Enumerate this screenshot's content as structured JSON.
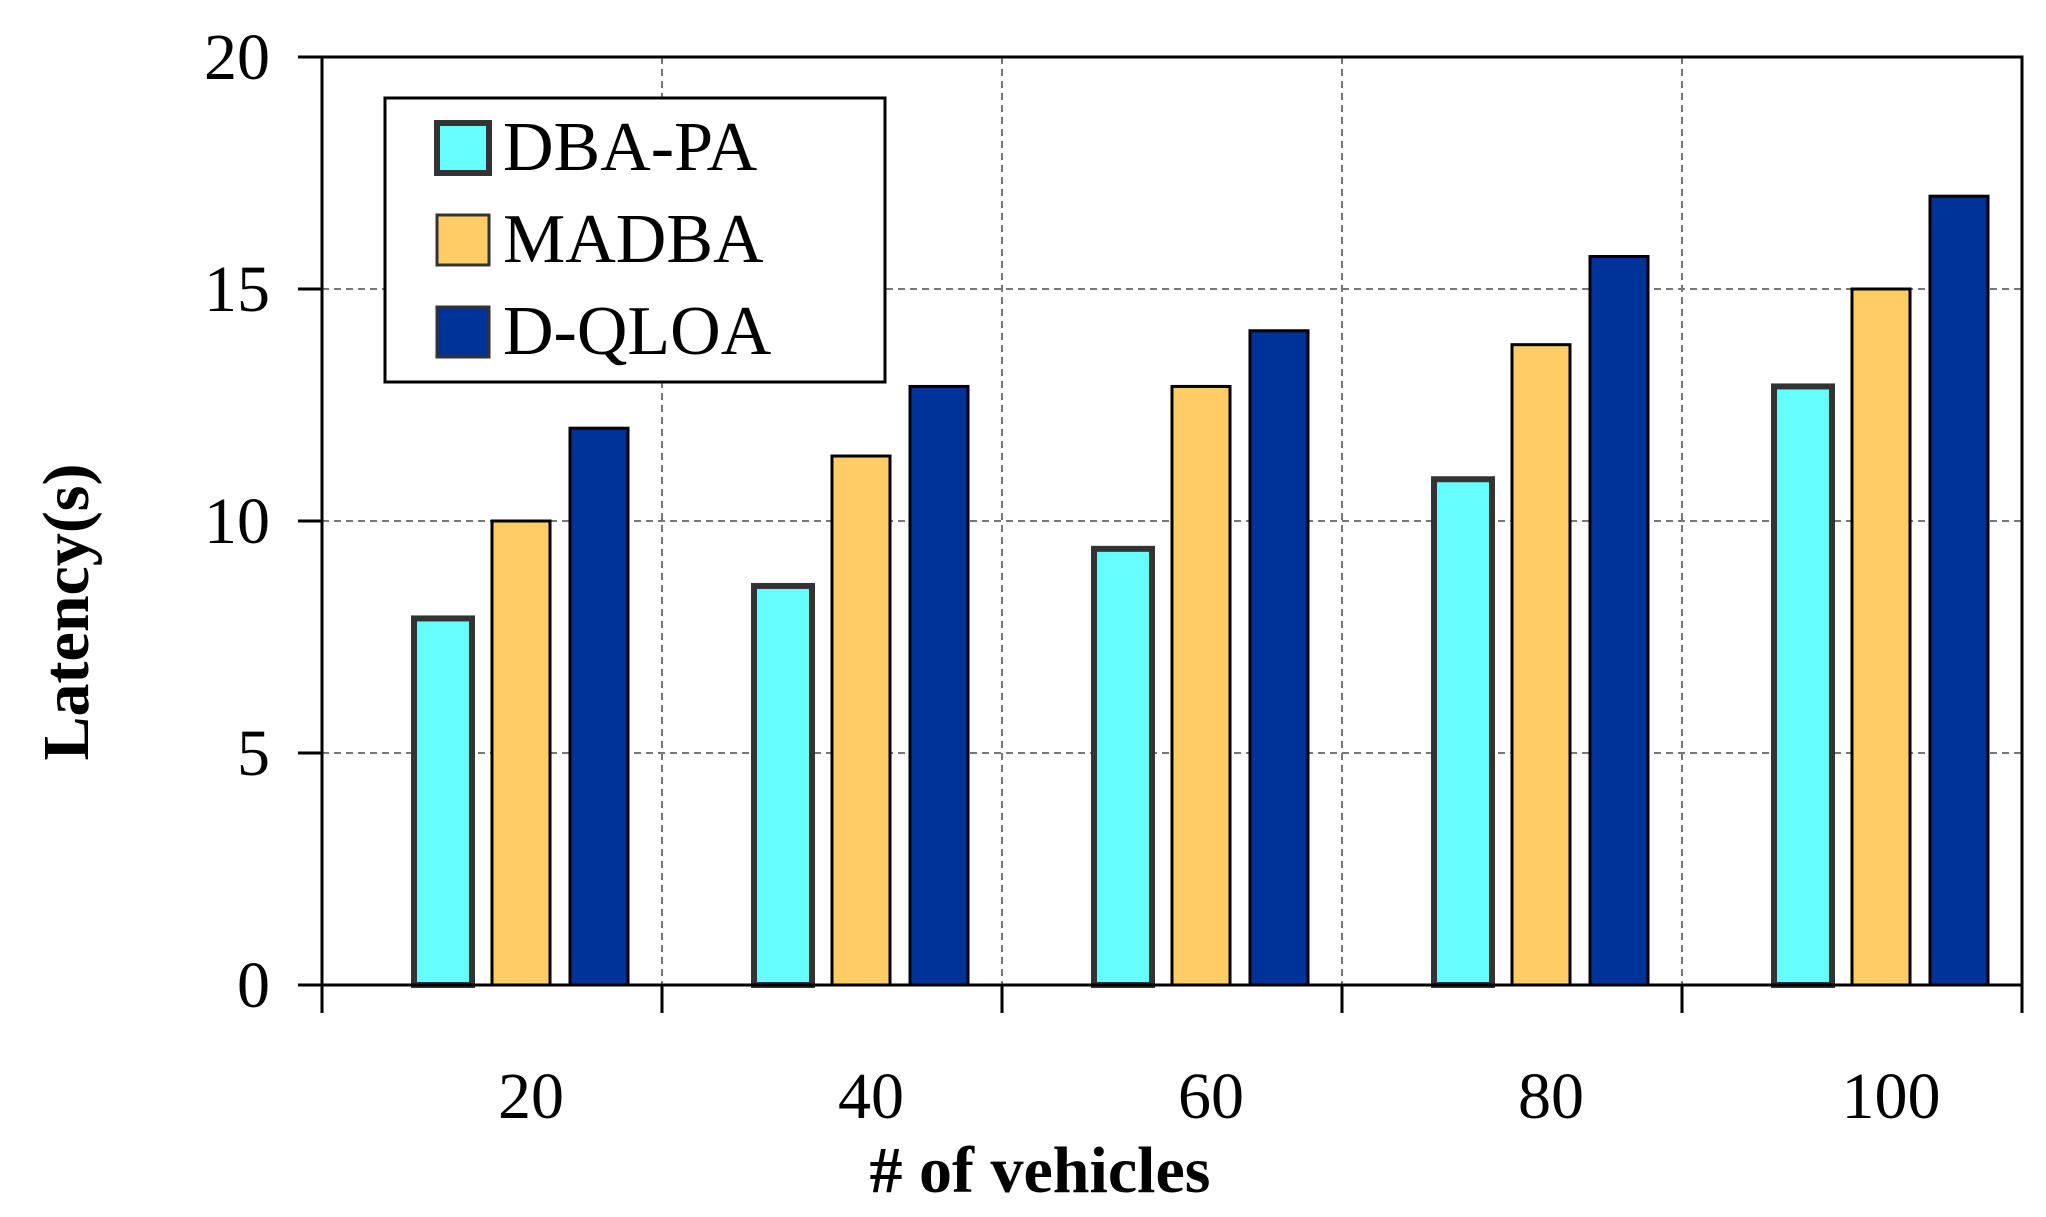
{
  "chart_data": {
    "type": "bar",
    "title": "",
    "xlabel": "# of vehicles",
    "ylabel": "Latency(s)",
    "categories": [
      "20",
      "40",
      "60",
      "80",
      "100"
    ],
    "ylim": [
      0,
      20
    ],
    "yticks": [
      "0",
      "5",
      "10",
      "15",
      "20"
    ],
    "grid": true,
    "legend_position": "top-left",
    "series": [
      {
        "name": "DBA-PA",
        "color": "#66FFFF",
        "values": [
          7.9,
          8.6,
          9.4,
          10.9,
          12.9
        ]
      },
      {
        "name": "MADBA",
        "color": "#FFCC66",
        "values": [
          10.0,
          11.4,
          12.9,
          13.8,
          15.0
        ]
      },
      {
        "name": "D-QLOA",
        "color": "#003399",
        "values": [
          12.0,
          12.9,
          14.1,
          15.7,
          17.0
        ]
      }
    ]
  }
}
